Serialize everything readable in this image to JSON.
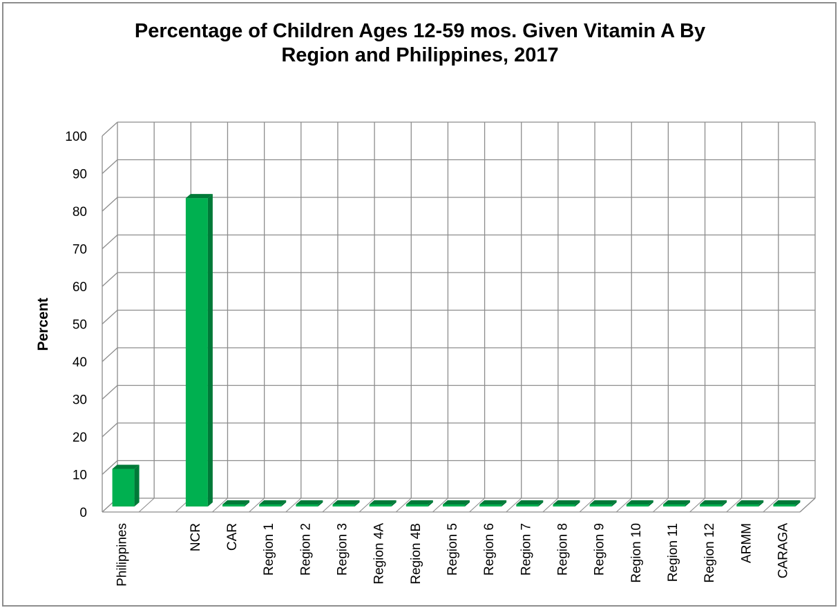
{
  "chart_data": {
    "type": "bar",
    "title": "Percentage of Children  Ages 12-59 mos. Given Vitamin A By\nRegion and Philippines, 2017",
    "xlabel": "",
    "ylabel": "Percent",
    "ylim": [
      0,
      100
    ],
    "yticks": [
      "0",
      "10",
      "20",
      "30",
      "40",
      "50",
      "60",
      "70",
      "80",
      "90",
      "100"
    ],
    "categories": [
      "Philippines",
      "",
      "NCR",
      "CAR",
      "Region 1",
      "Region 2",
      "Region 3",
      "Region 4A",
      "Region 4B",
      "Region 5",
      "Region 6",
      "Region 7",
      "Region 8",
      "Region 9",
      "Region 10",
      "Region 11",
      "Region 12",
      "ARMM",
      "CARAGA"
    ],
    "values": [
      10,
      null,
      82,
      0,
      0,
      0,
      0,
      0,
      0,
      0,
      0,
      0,
      0,
      0,
      0,
      0,
      0,
      0,
      0
    ],
    "grid": true,
    "legend": "none",
    "bar_color": "#00b050",
    "bar_side_color": "#007a38",
    "grid_color": "#8c8c8c"
  }
}
